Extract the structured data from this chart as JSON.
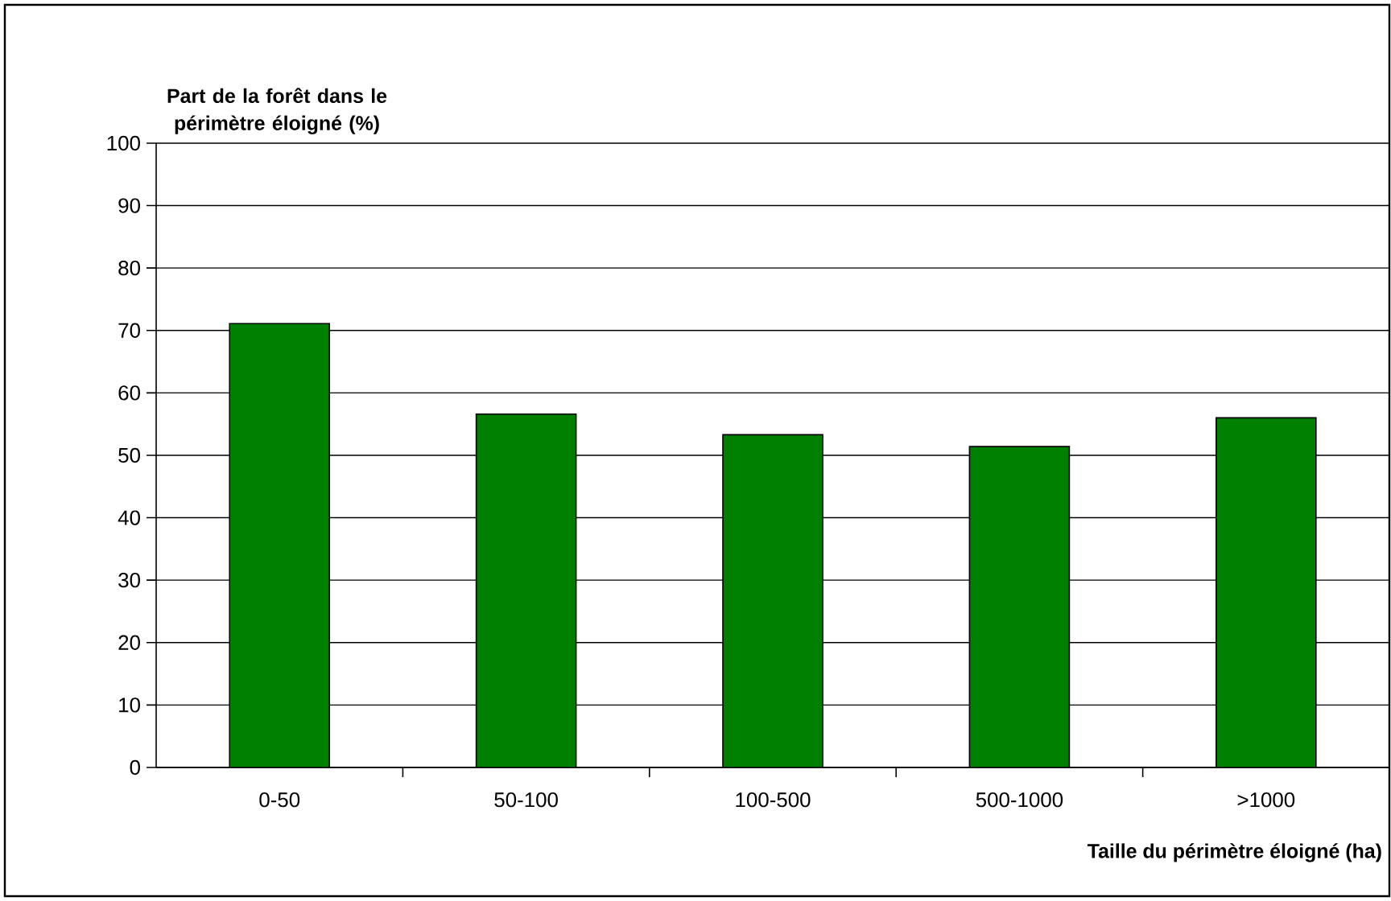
{
  "chart_data": {
    "type": "bar",
    "ylabel": "Part de la forêt dans le périmètre éloigné (%)",
    "xlabel": "Taille du périmètre éloigné (ha)",
    "categories": [
      "0-50",
      "50-100",
      "100-500",
      "500-1000",
      ">1000"
    ],
    "values": [
      71.1,
      56.6,
      53.3,
      51.4,
      56.0
    ],
    "color": "#008000",
    "ylim": [
      0,
      100
    ],
    "yticks": [
      0,
      10,
      20,
      30,
      40,
      50,
      60,
      70,
      80,
      90,
      100
    ],
    "grid": "y"
  }
}
